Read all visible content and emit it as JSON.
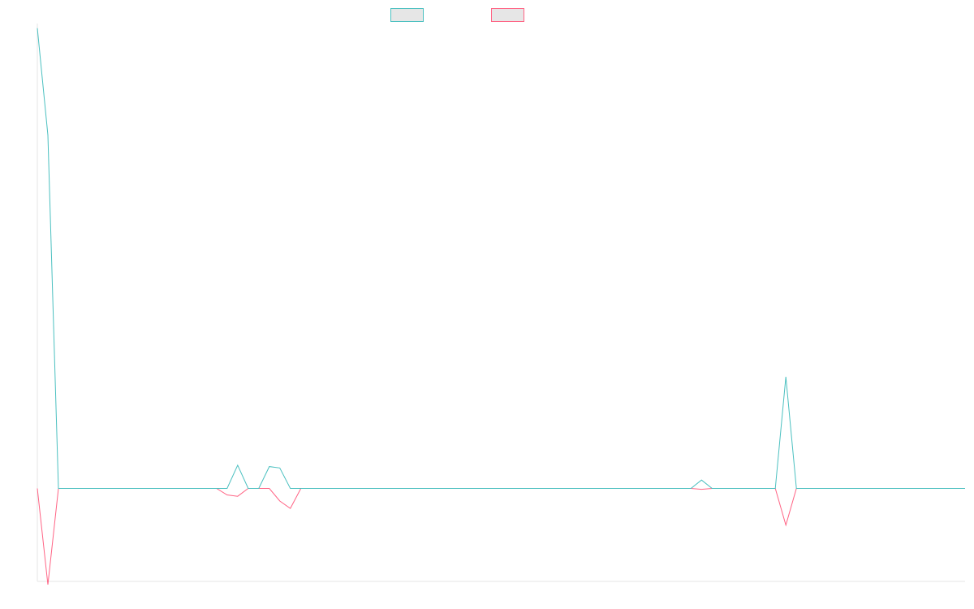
{
  "chart_data": {
    "type": "line",
    "title": "",
    "xlabel": "",
    "ylabel": "",
    "grid": false,
    "legend": "top-center",
    "x_count": 89,
    "ylim": [
      -0.2,
      1.0
    ],
    "series": [
      {
        "color": "#4bc0c0",
        "values": [
          0.99,
          0.76,
          0,
          0,
          0,
          0,
          0,
          0,
          0,
          0,
          0,
          0,
          0,
          0,
          0,
          0,
          0,
          0,
          0,
          0.05,
          0,
          0,
          0.047,
          0.044,
          0,
          0,
          0,
          0,
          0,
          0,
          0,
          0,
          0,
          0,
          0,
          0,
          0,
          0,
          0,
          0,
          0,
          0,
          0,
          0,
          0,
          0,
          0,
          0,
          0,
          0,
          0,
          0,
          0,
          0,
          0,
          0,
          0,
          0,
          0,
          0,
          0,
          0,
          0,
          0.018,
          0,
          0,
          0,
          0,
          0,
          0,
          0,
          0.24,
          0,
          0,
          0,
          0,
          0,
          0,
          0,
          0,
          0,
          0,
          0,
          0,
          0,
          0,
          0,
          0,
          0
        ]
      },
      {
        "color": "#ff6384",
        "values": [
          0,
          -0.207,
          0,
          0,
          0,
          0,
          0,
          0,
          0,
          0,
          0,
          0,
          0,
          0,
          0,
          0,
          0,
          0,
          -0.014,
          -0.017,
          0,
          0,
          0,
          -0.027,
          -0.043,
          0,
          0,
          0,
          0,
          0,
          0,
          0,
          0,
          0,
          0,
          0,
          0,
          0,
          0,
          0,
          0,
          0,
          0,
          0,
          0,
          0,
          0,
          0,
          0,
          0,
          0,
          0,
          0,
          0,
          0,
          0,
          0,
          0,
          0,
          0,
          0,
          0,
          0,
          -0.002,
          0,
          0,
          0,
          0,
          0,
          0,
          0,
          -0.079,
          0,
          0,
          0,
          0,
          0,
          0,
          0,
          0,
          0,
          0,
          0,
          0,
          0,
          0,
          0,
          0,
          0
        ]
      }
    ]
  }
}
